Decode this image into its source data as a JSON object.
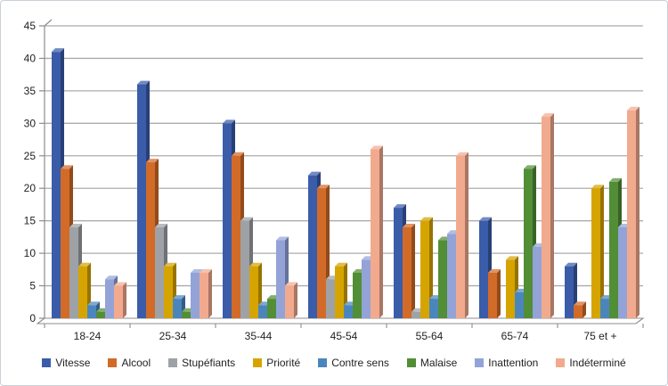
{
  "chart_data": {
    "type": "bar",
    "style": "3d-clustered-column",
    "title": "",
    "xlabel": "",
    "ylabel": "",
    "categories": [
      "18-24",
      "25-34",
      "35-44",
      "45-54",
      "55-64",
      "65-74",
      "75 et +"
    ],
    "series": [
      {
        "name": "Vitesse",
        "color": "#3A5CA9",
        "values": [
          41,
          36,
          30,
          22,
          17,
          15,
          8
        ]
      },
      {
        "name": "Alcool",
        "color": "#D26B28",
        "values": [
          23,
          24,
          25,
          20,
          14,
          7,
          2
        ]
      },
      {
        "name": "Stupéfiants",
        "color": "#9EA2A6",
        "values": [
          14,
          14,
          15,
          6,
          1,
          0,
          0
        ]
      },
      {
        "name": "Priorité",
        "color": "#D6A400",
        "values": [
          8,
          8,
          8,
          8,
          15,
          9,
          20
        ]
      },
      {
        "name": "Contre sens",
        "color": "#4A86BC",
        "values": [
          2,
          3,
          2,
          2,
          3,
          4,
          3
        ]
      },
      {
        "name": "Malaise",
        "color": "#528E36",
        "values": [
          1,
          1,
          3,
          7,
          12,
          23,
          21
        ]
      },
      {
        "name": "Inattention",
        "color": "#93A3D7",
        "values": [
          6,
          7,
          12,
          9,
          13,
          11,
          14
        ]
      },
      {
        "name": "Indéterminé",
        "color": "#F2AA8E",
        "values": [
          5,
          7,
          5,
          26,
          25,
          31,
          32
        ]
      }
    ],
    "ylim": [
      0,
      45
    ],
    "ytick_step": 5,
    "yticks": [
      0,
      5,
      10,
      15,
      20,
      25,
      30,
      35,
      40,
      45
    ],
    "grid": true,
    "legend_position": "bottom",
    "colors": {
      "gridline": "#ABABAB",
      "axis": "#8C8C8C",
      "axis_text": "#1f1f1f",
      "background": "#FFFFFF"
    }
  }
}
